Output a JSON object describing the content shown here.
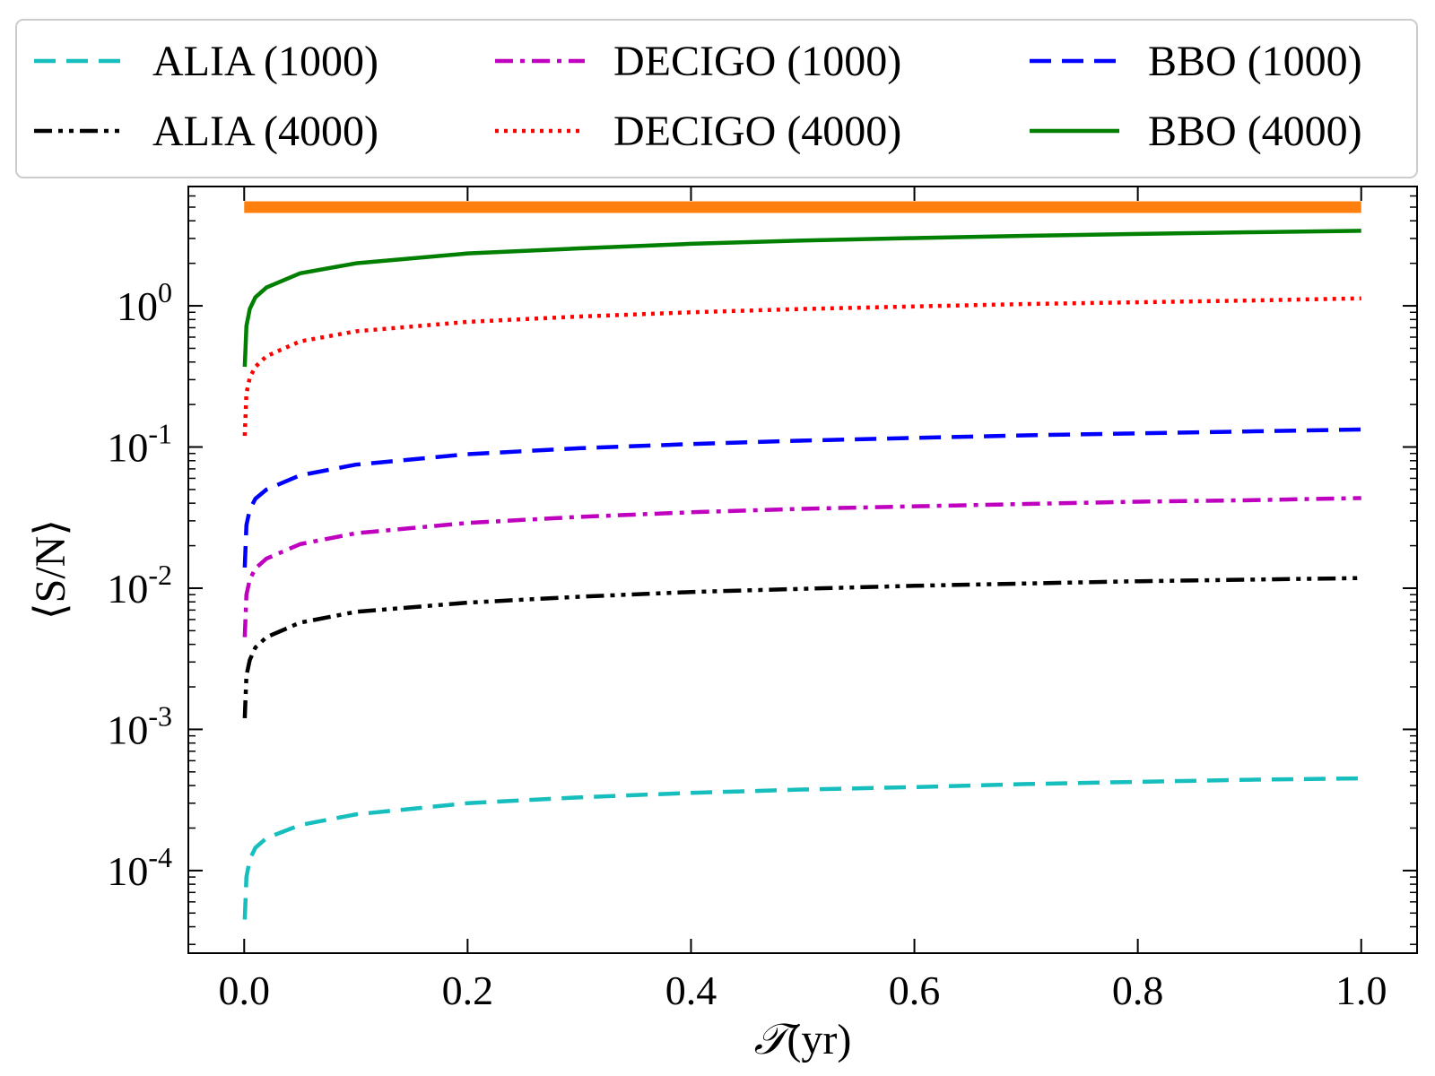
{
  "chart_data": {
    "type": "line",
    "xlabel": "(yr)",
    "xlabel_symbol": "𝒯",
    "ylabel": "⟨S/N⟩",
    "xlim": [
      -0.05,
      1.05
    ],
    "ylim": [
      2.6e-05,
      7.0
    ],
    "y_scale": "log",
    "x_ticks": [
      0.0,
      0.2,
      0.4,
      0.6,
      0.8,
      1.0
    ],
    "x_tick_labels": [
      "0.0",
      "0.2",
      "0.4",
      "0.6",
      "0.8",
      "1.0"
    ],
    "y_ticks": [
      {
        "value": 0.0001,
        "base": "10",
        "exp": "-4"
      },
      {
        "value": 0.001,
        "base": "10",
        "exp": "-3"
      },
      {
        "value": 0.01,
        "base": "10",
        "exp": "-2"
      },
      {
        "value": 0.1,
        "base": "10",
        "exp": "-1"
      },
      {
        "value": 1,
        "base": "10",
        "exp": "0"
      }
    ],
    "grid": false,
    "legend": {
      "position": "top",
      "columns": 3
    },
    "reference_line": {
      "y": 5.0,
      "x_range": [
        0.0,
        1.0
      ],
      "color": "#ff7f0e"
    },
    "series": [
      {
        "name": "ALIA (1000)",
        "color": "#17bebe",
        "dash": "dashed",
        "x": [
          0.0005,
          0.002,
          0.005,
          0.01,
          0.02,
          0.05,
          0.1,
          0.2,
          0.3,
          0.4,
          0.5,
          0.6,
          0.7,
          0.8,
          0.9,
          1.0
        ],
        "y": [
          4.5e-05,
          9e-05,
          0.00012,
          0.000145,
          0.00017,
          0.00021,
          0.00025,
          0.0003,
          0.00033,
          0.000355,
          0.000375,
          0.00039,
          0.00041,
          0.000425,
          0.00044,
          0.00045
        ]
      },
      {
        "name": "ALIA (4000)",
        "color": "#000000",
        "dash": "dashdotdot",
        "x": [
          0.0005,
          0.002,
          0.005,
          0.01,
          0.02,
          0.05,
          0.1,
          0.2,
          0.3,
          0.4,
          0.5,
          0.6,
          0.7,
          0.8,
          0.9,
          1.0
        ],
        "y": [
          0.0012,
          0.0024,
          0.0031,
          0.0038,
          0.0045,
          0.0057,
          0.0068,
          0.0079,
          0.0087,
          0.0094,
          0.0099,
          0.0104,
          0.0108,
          0.0112,
          0.0115,
          0.0118
        ]
      },
      {
        "name": "DECIGO (1000)",
        "color": "#bf00bf",
        "dash": "dashdot",
        "x": [
          0.0005,
          0.002,
          0.005,
          0.01,
          0.02,
          0.05,
          0.1,
          0.2,
          0.3,
          0.4,
          0.5,
          0.6,
          0.7,
          0.8,
          0.9,
          1.0
        ],
        "y": [
          0.0045,
          0.009,
          0.0115,
          0.0138,
          0.0162,
          0.0205,
          0.0245,
          0.029,
          0.032,
          0.0345,
          0.0365,
          0.038,
          0.0395,
          0.041,
          0.042,
          0.0435
        ]
      },
      {
        "name": "DECIGO (4000)",
        "color": "#ff0000",
        "dash": "dotted",
        "x": [
          0.0005,
          0.002,
          0.005,
          0.01,
          0.02,
          0.05,
          0.1,
          0.2,
          0.3,
          0.4,
          0.5,
          0.6,
          0.7,
          0.8,
          0.9,
          1.0
        ],
        "y": [
          0.12,
          0.24,
          0.31,
          0.37,
          0.44,
          0.56,
          0.66,
          0.77,
          0.84,
          0.9,
          0.95,
          0.99,
          1.03,
          1.06,
          1.09,
          1.13
        ]
      },
      {
        "name": "BBO (1000)",
        "color": "#0000ff",
        "dash": "dashed",
        "x": [
          0.0005,
          0.002,
          0.005,
          0.01,
          0.02,
          0.05,
          0.1,
          0.2,
          0.3,
          0.4,
          0.5,
          0.6,
          0.7,
          0.8,
          0.9,
          1.0
        ],
        "y": [
          0.014,
          0.028,
          0.036,
          0.043,
          0.05,
          0.063,
          0.075,
          0.089,
          0.098,
          0.105,
          0.111,
          0.116,
          0.121,
          0.125,
          0.129,
          0.133
        ]
      },
      {
        "name": "BBO (4000)",
        "color": "#007f00",
        "dash": "solid",
        "x": [
          0.0005,
          0.002,
          0.005,
          0.01,
          0.02,
          0.05,
          0.1,
          0.2,
          0.3,
          0.4,
          0.5,
          0.6,
          0.7,
          0.8,
          0.9,
          1.0
        ],
        "y": [
          0.37,
          0.72,
          0.95,
          1.15,
          1.35,
          1.7,
          2.0,
          2.35,
          2.55,
          2.75,
          2.9,
          3.02,
          3.13,
          3.23,
          3.32,
          3.4
        ]
      }
    ]
  }
}
